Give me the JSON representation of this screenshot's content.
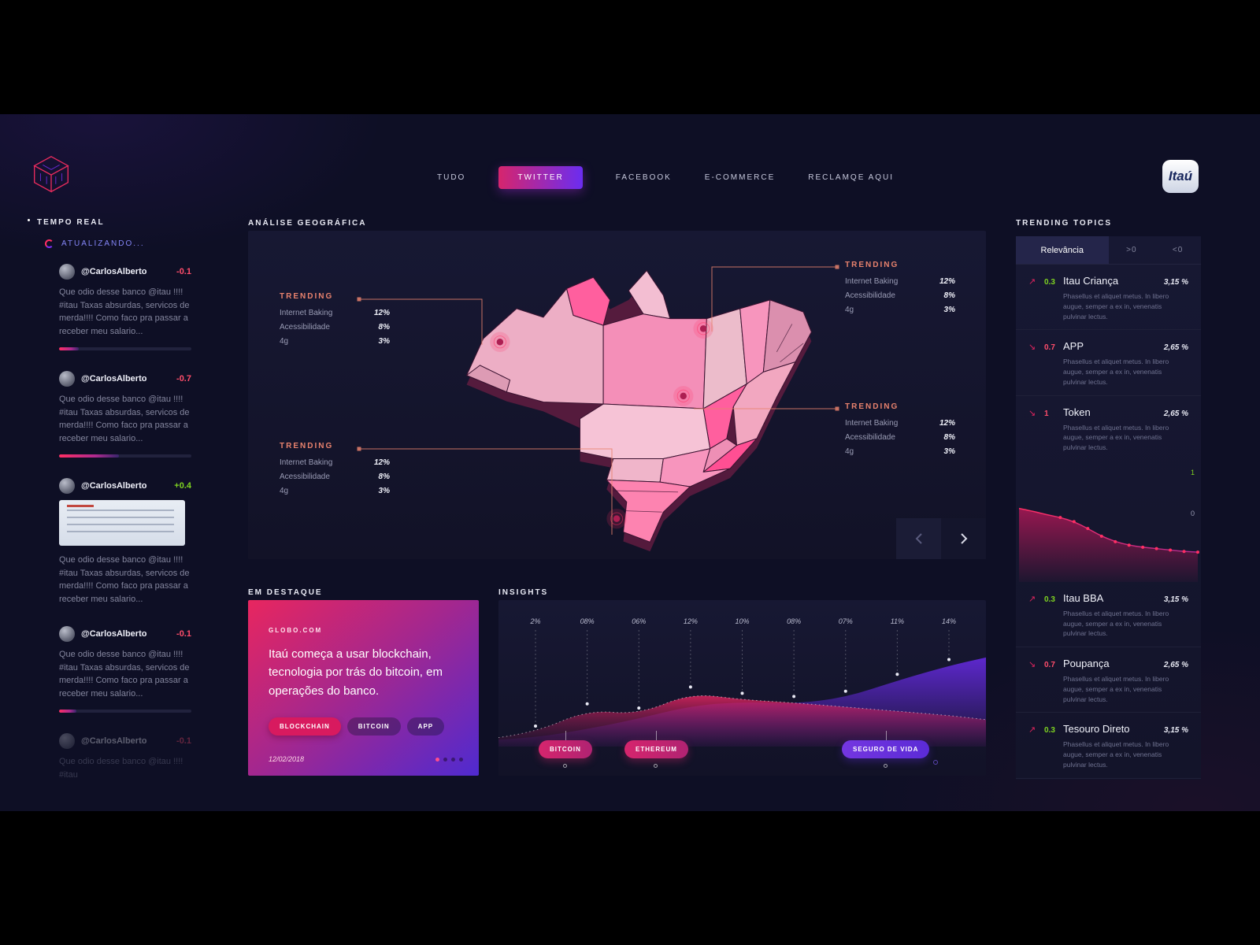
{
  "meta": {
    "bg": "#000000",
    "app_bg": "#0e0f25",
    "panel_bg": "#171833",
    "accent_pink": "#ff2e63",
    "accent_purple": "#6b2df0",
    "salmon": "#e8826d",
    "green": "#7ed321",
    "red": "#ff4d6b"
  },
  "nav": {
    "items": [
      {
        "label": "TUDO",
        "active": false
      },
      {
        "label": "TWITTER",
        "active": true
      },
      {
        "label": "FACEBOOK",
        "active": false
      },
      {
        "label": "E-COMMERCE",
        "active": false
      },
      {
        "label": "RECLAMQE AQUI",
        "active": false
      }
    ],
    "brand": "Itaú"
  },
  "feed": {
    "title": "TEMPO REAL",
    "status": "ATUALIZANDO...",
    "tweets": [
      {
        "handle": "@CarlosAlberto",
        "score": "-0.1",
        "sentiment": "negative",
        "bar": 0.15,
        "text": "Que odio desse banco @itau !!!! #itau Taxas absurdas, servicos de merda!!!! Como faco pra passar a receber meu salario..."
      },
      {
        "handle": "@CarlosAlberto",
        "score": "-0.7",
        "sentiment": "negative",
        "bar": 0.45,
        "text": "Que odio desse banco @itau !!!! #itau Taxas absurdas, servicos de merda!!!! Como faco pra passar a receber meu salario..."
      },
      {
        "handle": "@CarlosAlberto",
        "score": "+0.4",
        "sentiment": "positive",
        "bar": null,
        "text": "Que odio desse banco @itau !!!! #itau Taxas absurdas, servicos de merda!!!! Como faco pra passar a receber meu salario..."
      },
      {
        "handle": "@CarlosAlberto",
        "score": "-0.1",
        "sentiment": "negative",
        "bar": 0.13,
        "text": "Que odio desse banco @itau !!!! #itau Taxas absurdas, servicos de merda!!!! Como faco pra passar a receber meu salario..."
      },
      {
        "handle": "@CarlosAlberto",
        "score": "-0.1",
        "sentiment": "negative",
        "bar": null,
        "text": "Que odio desse banco @itau !!!! #itau"
      }
    ]
  },
  "geo": {
    "title": "ANÁLISE GEOGRÁFICA",
    "callouts": [
      {
        "title": "TRENDING",
        "rows": [
          {
            "label": "Internet Baking",
            "value": "12%"
          },
          {
            "label": "Acessibilidade",
            "value": "8%"
          },
          {
            "label": "4g",
            "value": "3%"
          }
        ]
      },
      {
        "title": "TRENDING",
        "rows": [
          {
            "label": "Internet Baking",
            "value": "12%"
          },
          {
            "label": "Acessibilidade",
            "value": "8%"
          },
          {
            "label": "4g",
            "value": "3%"
          }
        ]
      },
      {
        "title": "TRENDING",
        "rows": [
          {
            "label": "Internet Baking",
            "value": "12%"
          },
          {
            "label": "Acessibilidade",
            "value": "8%"
          },
          {
            "label": "4g",
            "value": "3%"
          }
        ]
      },
      {
        "title": "TRENDING",
        "rows": [
          {
            "label": "Internet Baking",
            "value": "12%"
          },
          {
            "label": "Acessibilidade",
            "value": "8%"
          },
          {
            "label": "4g",
            "value": "3%"
          }
        ]
      }
    ]
  },
  "destaque": {
    "title": "EM DESTAQUE",
    "source": "GLOBO.COM",
    "headline": "Itaú começa a usar blockchain, tecnologia por trás do bitcoin, em operações do banco.",
    "tags": [
      "BLOCKCHAIN",
      "BITCOIN",
      "APP"
    ],
    "date": "12/02/2018"
  },
  "insights": {
    "title": "INSIGHTS",
    "pills": [
      {
        "label": "BITCOIN",
        "color": "pink"
      },
      {
        "label": "ETHEREUM",
        "color": "pink"
      },
      {
        "label": "SEGURO DE VIDA",
        "color": "purple"
      }
    ],
    "chart_data": {
      "type": "area",
      "ticks": [
        "2%",
        "08%",
        "06%",
        "12%",
        "10%",
        "08%",
        "07%",
        "11%",
        "14%"
      ],
      "x": [
        -0.72,
        0,
        1,
        2,
        3,
        4,
        5,
        6,
        7,
        8,
        8.72
      ],
      "series": [
        {
          "name": "magenta",
          "color": "#e0245e",
          "values": [
            4,
            9,
            30,
            26,
            46,
            40,
            37,
            33,
            29,
            25,
            21
          ]
        },
        {
          "name": "purple",
          "color": "#6f2cf5",
          "values": [
            2,
            4,
            12,
            22,
            34,
            38,
            36,
            42,
            58,
            72,
            80
          ]
        }
      ],
      "legend_position": "bottom",
      "grid": false
    }
  },
  "topics": {
    "title": "TRENDING TOPICS",
    "tabs": [
      "Relevância",
      ">0",
      "<0"
    ],
    "axis": [
      "1",
      "0"
    ],
    "items": [
      {
        "trend": "up",
        "arrow": "↗",
        "score": "0.3",
        "name": "Itau Criança",
        "pct": "3,15 %",
        "desc": "Phasellus et aliquet metus. In libero augue, semper a ex in, venenatis pulvinar lectus."
      },
      {
        "trend": "down",
        "arrow": "↘",
        "score": "0.7",
        "name": "APP",
        "pct": "2,65 %",
        "desc": "Phasellus et aliquet metus. In libero augue, semper a ex in, venenatis pulvinar lectus."
      },
      {
        "trend": "down",
        "arrow": "↘",
        "score": "1",
        "name": "Token",
        "pct": "2,65 %",
        "desc": "Phasellus et aliquet metus. In libero augue, semper a ex in, venenatis pulvinar lectus."
      },
      {
        "trend": "up",
        "arrow": "↗",
        "score": "0.3",
        "name": "Itau BBA",
        "pct": "3,15 %",
        "desc": "Phasellus et aliquet metus. In libero augue, semper a ex in, venenatis pulvinar lectus."
      },
      {
        "trend": "down",
        "arrow": "↘",
        "score": "0.7",
        "name": "Poupança",
        "pct": "2,65 %",
        "desc": "Phasellus et aliquet metus. In libero augue, semper a ex in, venenatis pulvinar lectus."
      },
      {
        "trend": "up",
        "arrow": "↗",
        "score": "0.3",
        "name": "Tesouro Direto",
        "pct": "3,15 %",
        "desc": "Phasellus et aliquet metus. In libero augue, semper a ex in, venenatis pulvinar lectus."
      }
    ],
    "chart_data": {
      "type": "area",
      "color": "#e0245e",
      "values": [
        97,
        93,
        88,
        84,
        78,
        68,
        57,
        49,
        44,
        41,
        39,
        37,
        35,
        34
      ],
      "ylim": [
        0,
        100
      ]
    }
  }
}
